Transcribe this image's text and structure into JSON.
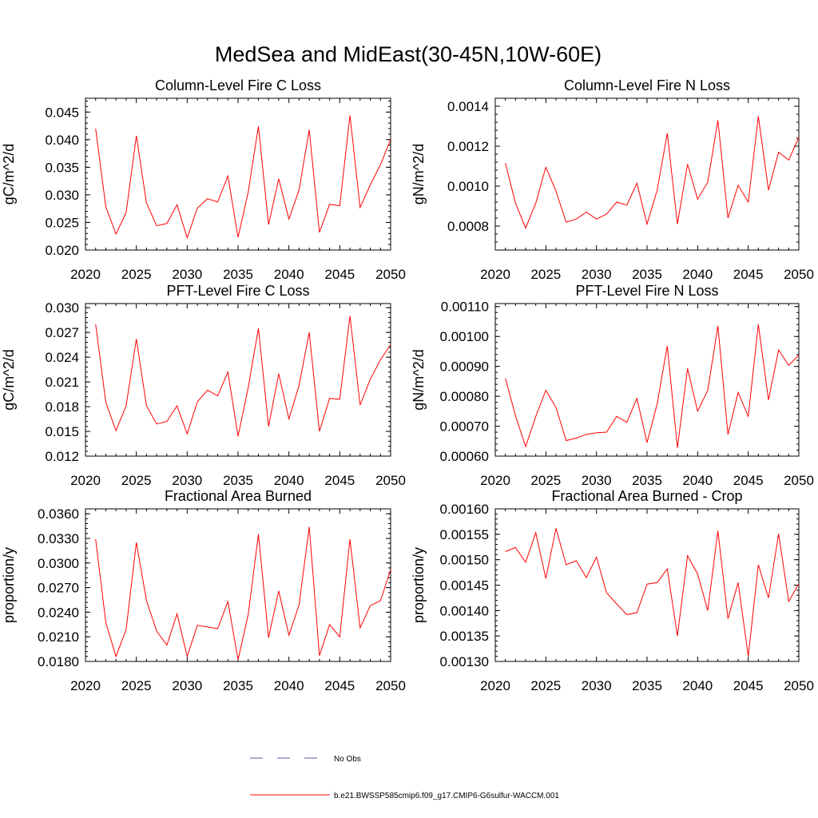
{
  "figure": {
    "title": "MedSea and MidEast(30-45N,10W-60E)"
  },
  "legend": {
    "items": [
      {
        "label": "No Obs",
        "color": "#5a5aa8",
        "dash": "dashed"
      },
      {
        "label": "b.e21.BWSSP585cmip6.f09_g17.CMIP6-G6sulfur-WACCM.001",
        "color": "#ff0000",
        "dash": "solid"
      }
    ]
  },
  "chart_data": [
    {
      "type": "line",
      "title": "Column-Level Fire C Loss",
      "ylabel": "gC/m^2/d",
      "xlim": [
        2020,
        2050
      ],
      "ylim": [
        0.02,
        0.0475
      ],
      "xticks": [
        "2020",
        "2025",
        "2030",
        "2035",
        "2040",
        "2045",
        "2050"
      ],
      "yticks": [
        "0.020",
        "0.025",
        "0.030",
        "0.035",
        "0.040",
        "0.045"
      ],
      "x": [
        2021,
        2022,
        2023,
        2024,
        2025,
        2026,
        2027,
        2028,
        2029,
        2030,
        2031,
        2032,
        2033,
        2034,
        2035,
        2036,
        2037,
        2038,
        2039,
        2040,
        2041,
        2042,
        2043,
        2044,
        2045,
        2046,
        2047,
        2048,
        2049,
        2050
      ],
      "series": [
        {
          "color": "#ff0000",
          "values": [
            0.042,
            0.0278,
            0.0229,
            0.0268,
            0.0407,
            0.0285,
            0.0244,
            0.0248,
            0.0282,
            0.0222,
            0.0276,
            0.0293,
            0.0287,
            0.0334,
            0.0223,
            0.0305,
            0.0424,
            0.0246,
            0.0329,
            0.0256,
            0.0309,
            0.0418,
            0.0232,
            0.0283,
            0.028,
            0.0444,
            0.0277,
            0.0318,
            0.0355,
            0.04
          ]
        }
      ]
    },
    {
      "type": "line",
      "title": "Column-Level Fire N Loss",
      "ylabel": "gN/m^2/d",
      "xlim": [
        2020,
        2050
      ],
      "ylim": [
        0.00068,
        0.00144
      ],
      "xticks": [
        "2020",
        "2025",
        "2030",
        "2035",
        "2040",
        "2045",
        "2050"
      ],
      "yticks": [
        "0.0008",
        "0.0010",
        "0.0012",
        "0.0014"
      ],
      "x": [
        2021,
        2022,
        2023,
        2024,
        2025,
        2026,
        2027,
        2028,
        2029,
        2030,
        2031,
        2032,
        2033,
        2034,
        2035,
        2036,
        2037,
        2038,
        2039,
        2040,
        2041,
        2042,
        2043,
        2044,
        2045,
        2046,
        2047,
        2048,
        2049,
        2050
      ],
      "series": [
        {
          "color": "#ff0000",
          "values": [
            0.001115,
            0.000915,
            0.00079,
            0.000915,
            0.001095,
            0.000975,
            0.00082,
            0.000835,
            0.00087,
            0.000835,
            0.00086,
            0.00092,
            0.000905,
            0.001015,
            0.00081,
            0.00098,
            0.001265,
            0.00081,
            0.00111,
            0.000935,
            0.00102,
            0.00133,
            0.00084,
            0.001005,
            0.00092,
            0.00135,
            0.00098,
            0.00117,
            0.00113,
            0.001245
          ]
        }
      ]
    },
    {
      "type": "line",
      "title": "PFT-Level Fire C Loss",
      "ylabel": "gC/m^2/d",
      "xlim": [
        2020,
        2050
      ],
      "ylim": [
        0.012,
        0.0305
      ],
      "xticks": [
        "2020",
        "2025",
        "2030",
        "2035",
        "2040",
        "2045",
        "2050"
      ],
      "yticks": [
        "0.012",
        "0.015",
        "0.018",
        "0.021",
        "0.024",
        "0.027",
        "0.030"
      ],
      "x": [
        2021,
        2022,
        2023,
        2024,
        2025,
        2026,
        2027,
        2028,
        2029,
        2030,
        2031,
        2032,
        2033,
        2034,
        2035,
        2036,
        2037,
        2038,
        2039,
        2040,
        2041,
        2042,
        2043,
        2044,
        2045,
        2046,
        2047,
        2048,
        2049,
        2050
      ],
      "series": [
        {
          "color": "#ff0000",
          "values": [
            0.028,
            0.0185,
            0.0151,
            0.0181,
            0.0262,
            0.0181,
            0.0159,
            0.0162,
            0.0181,
            0.0147,
            0.0186,
            0.02,
            0.0193,
            0.0222,
            0.0144,
            0.0203,
            0.0275,
            0.0156,
            0.022,
            0.0165,
            0.0206,
            0.027,
            0.015,
            0.019,
            0.0189,
            0.029,
            0.0182,
            0.0213,
            0.0237,
            0.0255
          ]
        }
      ]
    },
    {
      "type": "line",
      "title": "PFT-Level Fire N Loss",
      "ylabel": "gN/m^2/d",
      "xlim": [
        2020,
        2050
      ],
      "ylim": [
        0.0006,
        0.00111
      ],
      "xticks": [
        "2020",
        "2025",
        "2030",
        "2035",
        "2040",
        "2045",
        "2050"
      ],
      "yticks": [
        "0.00060",
        "0.00070",
        "0.00080",
        "0.00090",
        "0.00100",
        "0.00110"
      ],
      "x": [
        2021,
        2022,
        2023,
        2024,
        2025,
        2026,
        2027,
        2028,
        2029,
        2030,
        2031,
        2032,
        2033,
        2034,
        2035,
        2036,
        2037,
        2038,
        2039,
        2040,
        2041,
        2042,
        2043,
        2044,
        2045,
        2046,
        2047,
        2048,
        2049,
        2050
      ],
      "series": [
        {
          "color": "#ff0000",
          "values": [
            0.00086,
            0.000735,
            0.000632,
            0.000733,
            0.00082,
            0.000763,
            0.000652,
            0.00066,
            0.000673,
            0.000678,
            0.00068,
            0.000733,
            0.000713,
            0.000793,
            0.000645,
            0.000775,
            0.000968,
            0.000628,
            0.000893,
            0.00075,
            0.00082,
            0.001035,
            0.000672,
            0.000813,
            0.000733,
            0.00104,
            0.000788,
            0.000955,
            0.000903,
            0.000938
          ]
        }
      ]
    },
    {
      "type": "line",
      "title": "Fractional Area Burned",
      "ylabel": "proportion/y",
      "xlim": [
        2020,
        2050
      ],
      "ylim": [
        0.018,
        0.0366
      ],
      "xticks": [
        "2020",
        "2025",
        "2030",
        "2035",
        "2040",
        "2045",
        "2050"
      ],
      "yticks": [
        "0.0180",
        "0.0210",
        "0.0240",
        "0.0270",
        "0.0300",
        "0.0330",
        "0.0360"
      ],
      "x": [
        2021,
        2022,
        2023,
        2024,
        2025,
        2026,
        2027,
        2028,
        2029,
        2030,
        2031,
        2032,
        2033,
        2034,
        2035,
        2036,
        2037,
        2038,
        2039,
        2040,
        2041,
        2042,
        2043,
        2044,
        2045,
        2046,
        2047,
        2048,
        2049,
        2050
      ],
      "series": [
        {
          "color": "#ff0000",
          "values": [
            0.0329,
            0.0227,
            0.0186,
            0.0219,
            0.0325,
            0.0254,
            0.0217,
            0.02,
            0.0238,
            0.0186,
            0.0224,
            0.0222,
            0.022,
            0.0253,
            0.0182,
            0.0237,
            0.0335,
            0.0209,
            0.0266,
            0.0212,
            0.0249,
            0.0344,
            0.0187,
            0.0225,
            0.021,
            0.0329,
            0.0221,
            0.0248,
            0.0254,
            0.0292
          ]
        }
      ]
    },
    {
      "type": "line",
      "title": "Fractional Area Burned - Crop",
      "ylabel": "proportion/y",
      "xlim": [
        2020,
        2050
      ],
      "ylim": [
        0.0013,
        0.0016
      ],
      "xticks": [
        "2020",
        "2025",
        "2030",
        "2035",
        "2040",
        "2045",
        "2050"
      ],
      "yticks": [
        "0.00130",
        "0.00135",
        "0.00140",
        "0.00145",
        "0.00150",
        "0.00155",
        "0.00160"
      ],
      "x": [
        2021,
        2022,
        2023,
        2024,
        2025,
        2026,
        2027,
        2028,
        2029,
        2030,
        2031,
        2032,
        2033,
        2034,
        2035,
        2036,
        2037,
        2038,
        2039,
        2040,
        2041,
        2042,
        2043,
        2044,
        2045,
        2046,
        2047,
        2048,
        2049,
        2050
      ],
      "series": [
        {
          "color": "#ff0000",
          "values": [
            0.001516,
            0.001524,
            0.001495,
            0.001553,
            0.001463,
            0.001562,
            0.00149,
            0.001498,
            0.001465,
            0.001505,
            0.001435,
            0.001413,
            0.001392,
            0.001396,
            0.001452,
            0.001455,
            0.001482,
            0.00135,
            0.001508,
            0.001472,
            0.0014,
            0.001557,
            0.001384,
            0.001455,
            0.00131,
            0.00149,
            0.001425,
            0.001551,
            0.001418,
            0.001453
          ]
        }
      ]
    }
  ]
}
